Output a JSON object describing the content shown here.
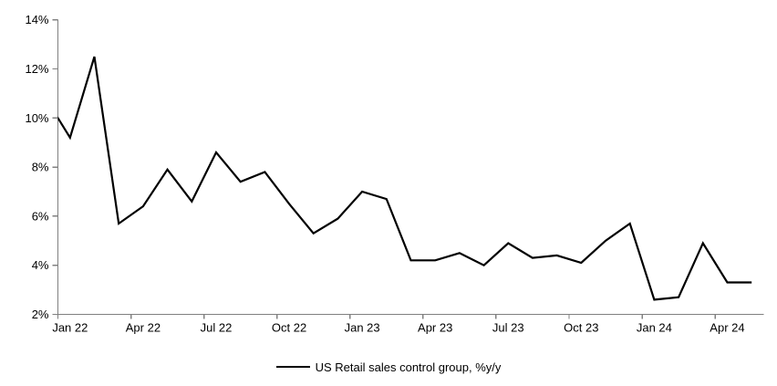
{
  "chart_data": {
    "type": "line",
    "title": "",
    "legend_label": "US Retail sales control group, %y/y",
    "legend_position": "bottom",
    "grid": false,
    "line_color": "#000000",
    "axis_color": "#808080",
    "tick_label_color": "#000000",
    "ylim": [
      2,
      14
    ],
    "y_tick_step": 2,
    "y_tick_labels": [
      "2%",
      "4%",
      "6%",
      "8%",
      "10%",
      "12%",
      "14%"
    ],
    "x_tick_every": 3,
    "x_tick_labels": [
      "Jan 22",
      "Apr 22",
      "Jul 22",
      "Oct 22",
      "Jan 23",
      "Apr 23",
      "Jul 23",
      "Oct 23",
      "Jan 24",
      "Apr 24"
    ],
    "x": [
      "Jan 22",
      "Feb 22",
      "Mar 22",
      "Apr 22",
      "May 22",
      "Jun 22",
      "Jul 22",
      "Aug 22",
      "Sep 22",
      "Oct 22",
      "Nov 22",
      "Dec 22",
      "Jan 23",
      "Feb 23",
      "Mar 23",
      "Apr 23",
      "May 23",
      "Jun 23",
      "Jul 23",
      "Aug 23",
      "Sep 23",
      "Oct 23",
      "Nov 23",
      "Dec 23",
      "Jan 24",
      "Feb 24",
      "Mar 24",
      "Apr 24",
      "May 24"
    ],
    "values": [
      9.2,
      12.5,
      5.7,
      6.4,
      7.9,
      6.6,
      8.6,
      7.4,
      7.8,
      6.5,
      5.3,
      5.9,
      7.0,
      6.7,
      4.2,
      4.2,
      4.5,
      4.0,
      4.9,
      4.3,
      4.4,
      4.1,
      5.0,
      5.7,
      2.6,
      2.7,
      4.9,
      3.3,
      3.3
    ],
    "lead_in": {
      "month": "Dec 21",
      "value": 10.8,
      "clipped_at_left_axis": true
    }
  }
}
